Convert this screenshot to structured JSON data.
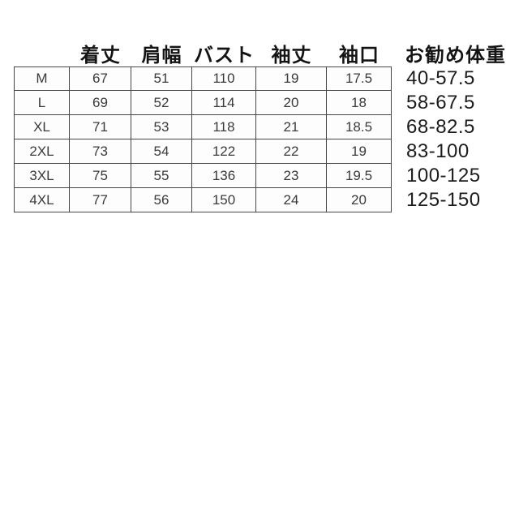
{
  "chart_data": {
    "type": "table",
    "title": "",
    "columns": [
      "着丈",
      "肩幅",
      "バスト",
      "袖丈",
      "袖口",
      "お勧め体重"
    ],
    "row_label_column": "size",
    "rows": [
      {
        "size": "M",
        "values": [
          "67",
          "51",
          "110",
          "19",
          "17.5"
        ],
        "weight": "40-57.5"
      },
      {
        "size": "L",
        "values": [
          "69",
          "52",
          "114",
          "20",
          "18"
        ],
        "weight": "58-67.5"
      },
      {
        "size": "XL",
        "values": [
          "71",
          "53",
          "118",
          "21",
          "18.5"
        ],
        "weight": "68-82.5"
      },
      {
        "size": "2XL",
        "values": [
          "73",
          "54",
          "122",
          "22",
          "19"
        ],
        "weight": "83-100"
      },
      {
        "size": "3XL",
        "values": [
          "75",
          "55",
          "136",
          "23",
          "19.5"
        ],
        "weight": "100-125"
      },
      {
        "size": "4XL",
        "values": [
          "77",
          "56",
          "150",
          "24",
          "20"
        ],
        "weight": "125-150"
      }
    ],
    "layout": {
      "grid_on": true,
      "weight_column_unbordered": true,
      "blank_area_below": true
    },
    "colors": {
      "background": "#ffffff",
      "border": "#474747",
      "cell_text": "#3a3a3a",
      "header_text": "#141414",
      "weight_text": "#1c1c1c"
    }
  }
}
